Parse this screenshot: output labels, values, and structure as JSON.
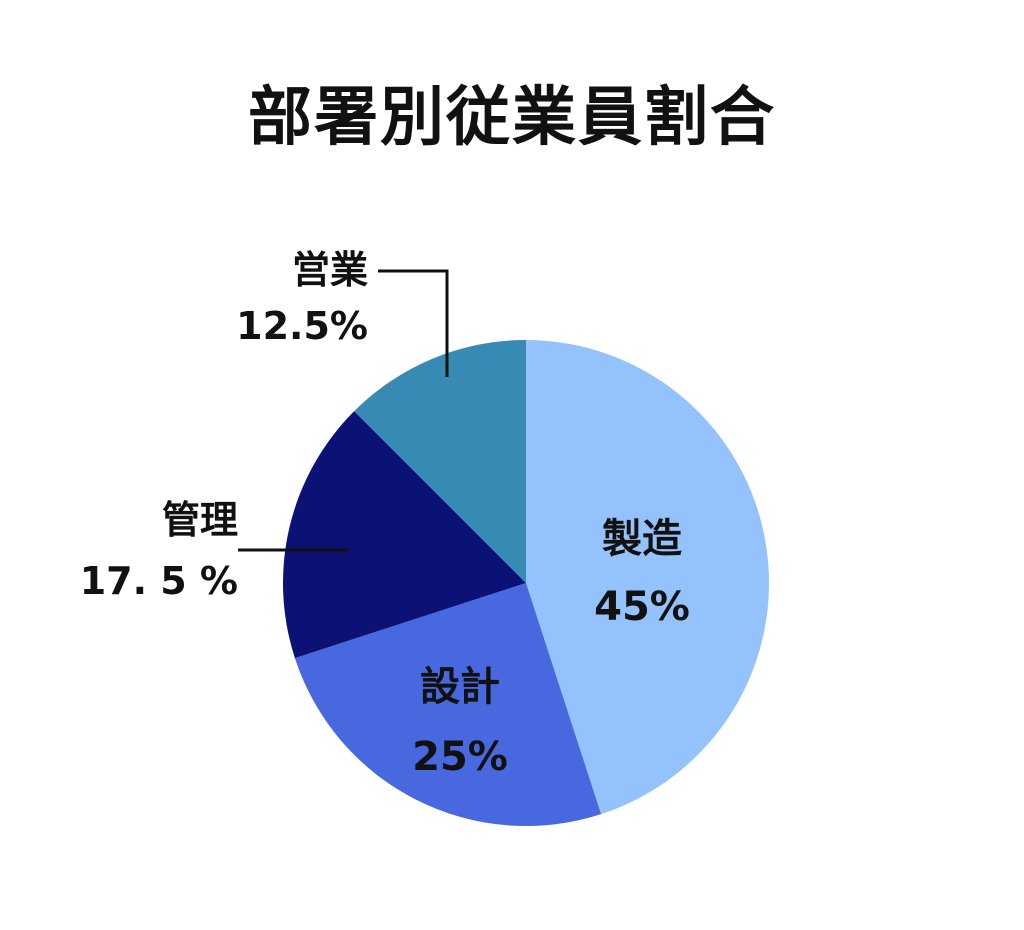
{
  "chart_data": {
    "type": "pie",
    "title": "部署別従業員割合",
    "slices": [
      {
        "category": "製造",
        "value": 45,
        "label": "45%",
        "color": "#93c2fc"
      },
      {
        "category": "設計",
        "value": 25,
        "label": "25%",
        "color": "#4868e0"
      },
      {
        "category": "管理",
        "value": 17.5,
        "label": "17. 5 %",
        "color": "#0c1275"
      },
      {
        "category": "営業",
        "value": 12.5,
        "label": "12.5%",
        "color": "#368ab4"
      }
    ],
    "start_angle": "12 o'clock",
    "direction": "clockwise",
    "legend": "none"
  }
}
